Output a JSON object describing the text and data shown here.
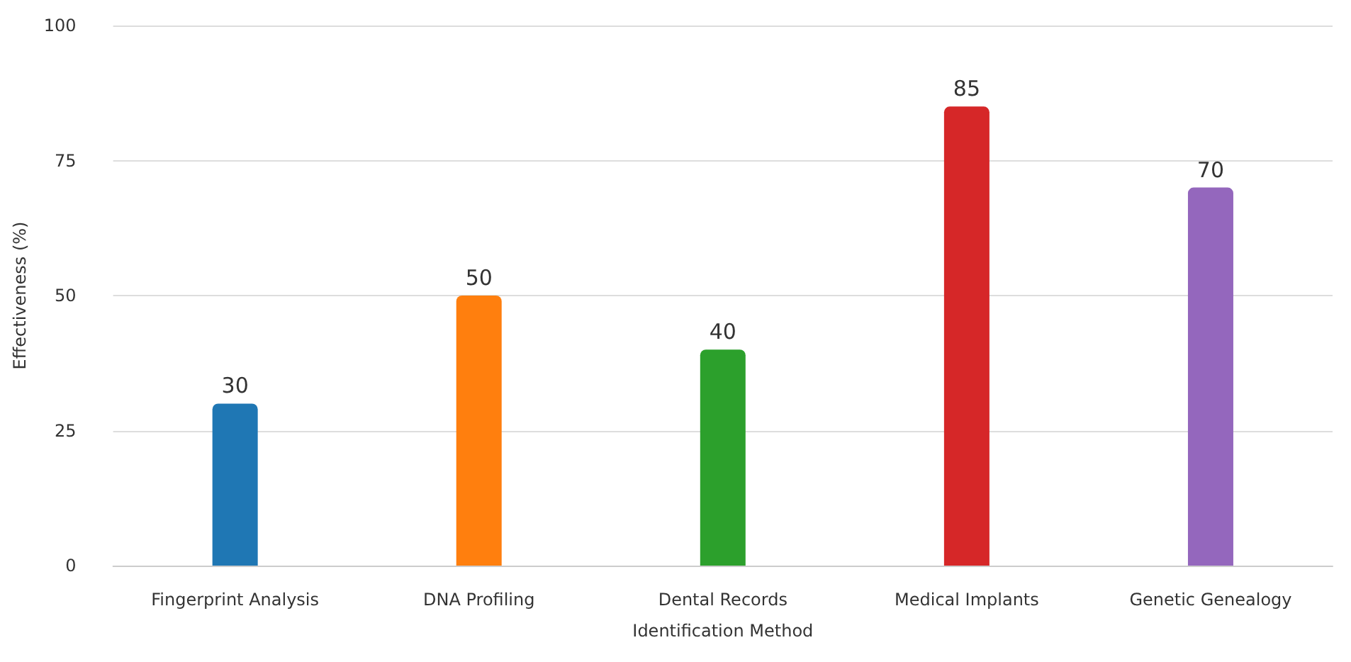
{
  "chart_data": {
    "type": "bar",
    "xlabel": "Identification Method",
    "ylabel": "Effectiveness (%)",
    "categories": [
      "Fingerprint Analysis",
      "DNA Profiling",
      "Dental Records",
      "Medical Implants",
      "Genetic Genealogy"
    ],
    "values": [
      30,
      50,
      40,
      85,
      70
    ],
    "colors": [
      "#1f77b4",
      "#ff7f0e",
      "#2ca02c",
      "#d62728",
      "#9467bd"
    ],
    "ylim": [
      0,
      100
    ],
    "yticks": [
      0,
      25,
      50,
      75,
      100
    ],
    "grid": "y",
    "data_labels": true
  }
}
